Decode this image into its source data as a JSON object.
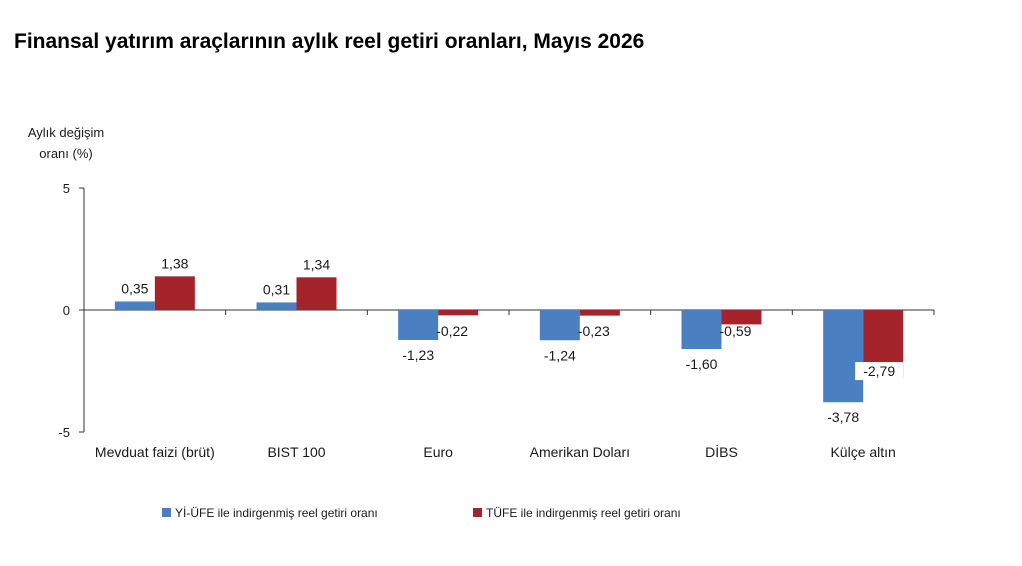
{
  "chart_data": {
    "type": "bar",
    "title": "Finansal yatırım araçlarının aylık reel getiri oranları, Mayıs 2026",
    "ylabel": [
      "Aylık değişim",
      "oranı (%)"
    ],
    "xlabel": "",
    "ylim": [
      -5,
      5
    ],
    "yticks": [
      5,
      0,
      -5
    ],
    "grid": false,
    "legend_position": "bottom",
    "categories": [
      "Mevduat faizi (brüt)",
      "BIST 100",
      "Euro",
      "Amerikan Doları",
      "DİBS",
      "Külçe altın"
    ],
    "series": [
      {
        "name": "Yİ-ÜFE ile indirgenmiş reel getiri oranı",
        "color": "#4a7fc1",
        "values": [
          0.35,
          0.31,
          -1.23,
          -1.24,
          -1.6,
          -3.78
        ],
        "labels": [
          "0,35",
          "0,31",
          "-1,23",
          "-1,24",
          "-1,60",
          "-3,78"
        ]
      },
      {
        "name": "TÜFE ile indirgenmiş reel getiri oranı",
        "color": "#a5232a",
        "values": [
          1.38,
          1.34,
          -0.22,
          -0.23,
          -0.59,
          -2.79
        ],
        "labels": [
          "1,38",
          "1,34",
          "-0,22",
          "-0,23",
          "-0,59",
          "-2,79"
        ]
      }
    ]
  }
}
